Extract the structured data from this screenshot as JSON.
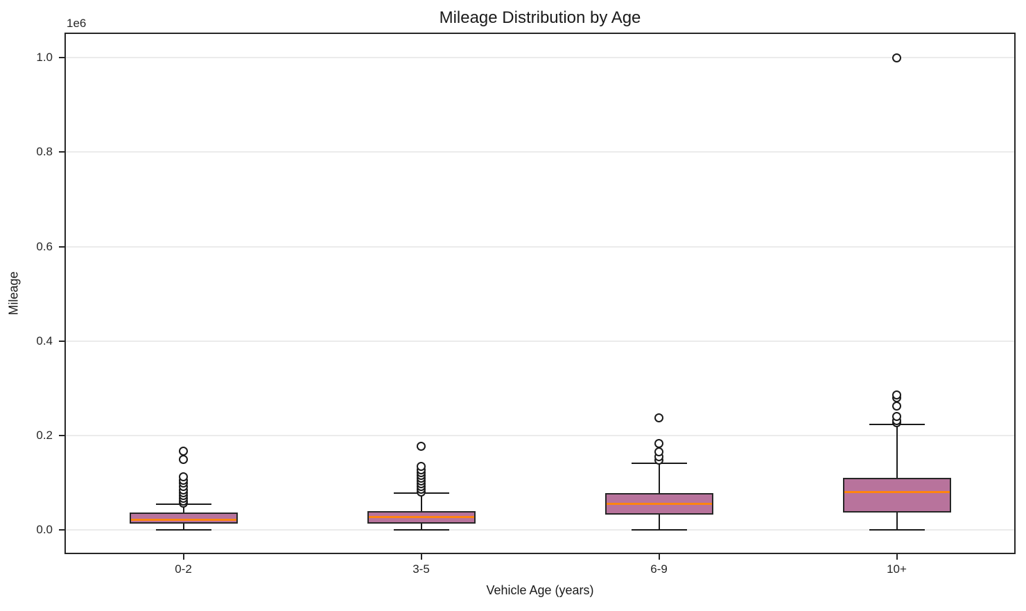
{
  "figure": {
    "background": "#ffffff"
  },
  "chart_data": {
    "type": "box",
    "title": "Mileage Distribution by Age",
    "xlabel": "Vehicle Age (years)",
    "ylabel": "Mileage",
    "y_offset_label": "1e6",
    "grid": "horizontal",
    "legend": "none",
    "ylim": [
      -51000,
      1053000
    ],
    "y_ticks": [
      {
        "value": 0,
        "label": "0.0"
      },
      {
        "value": 200000,
        "label": "0.2"
      },
      {
        "value": 400000,
        "label": "0.4"
      },
      {
        "value": 600000,
        "label": "0.6"
      },
      {
        "value": 800000,
        "label": "0.8"
      },
      {
        "value": 1000000,
        "label": "1.0"
      }
    ],
    "categories": [
      "0-2",
      "3-5",
      "6-9",
      "10+"
    ],
    "boxes": [
      {
        "category": "0-2",
        "whislo": 0,
        "q1": 14000,
        "med": 22000,
        "q3": 37000,
        "whishi": 55000,
        "fliers": [
          57000,
          62000,
          67000,
          73000,
          79000,
          85000,
          92000,
          99000,
          106000,
          112000,
          150000,
          167000
        ]
      },
      {
        "category": "3-5",
        "whislo": 0,
        "q1": 13000,
        "med": 27000,
        "q3": 40000,
        "whishi": 78000,
        "fliers": [
          80000,
          86000,
          92000,
          98000,
          104000,
          110000,
          116000,
          122000,
          128000,
          135000,
          178000
        ]
      },
      {
        "category": "6-9",
        "whislo": 0,
        "q1": 32000,
        "med": 56000,
        "q3": 78000,
        "whishi": 142000,
        "fliers": [
          148000,
          156000,
          165000,
          183000,
          238000
        ]
      },
      {
        "category": "10+",
        "whislo": 0,
        "q1": 37000,
        "med": 80000,
        "q3": 111000,
        "whishi": 223000,
        "fliers": [
          227000,
          232000,
          240000,
          262000,
          280000,
          286000,
          1000000
        ]
      }
    ],
    "colors": {
      "box_fill": "#b8739c",
      "box_edge": "#262626",
      "median": "#ff850f",
      "whisker": "#1a1a1a",
      "flier_edge": "#1a1a1a",
      "grid": "#ebebeb",
      "text": "#1a1a1a",
      "background": "#ffffff"
    }
  }
}
